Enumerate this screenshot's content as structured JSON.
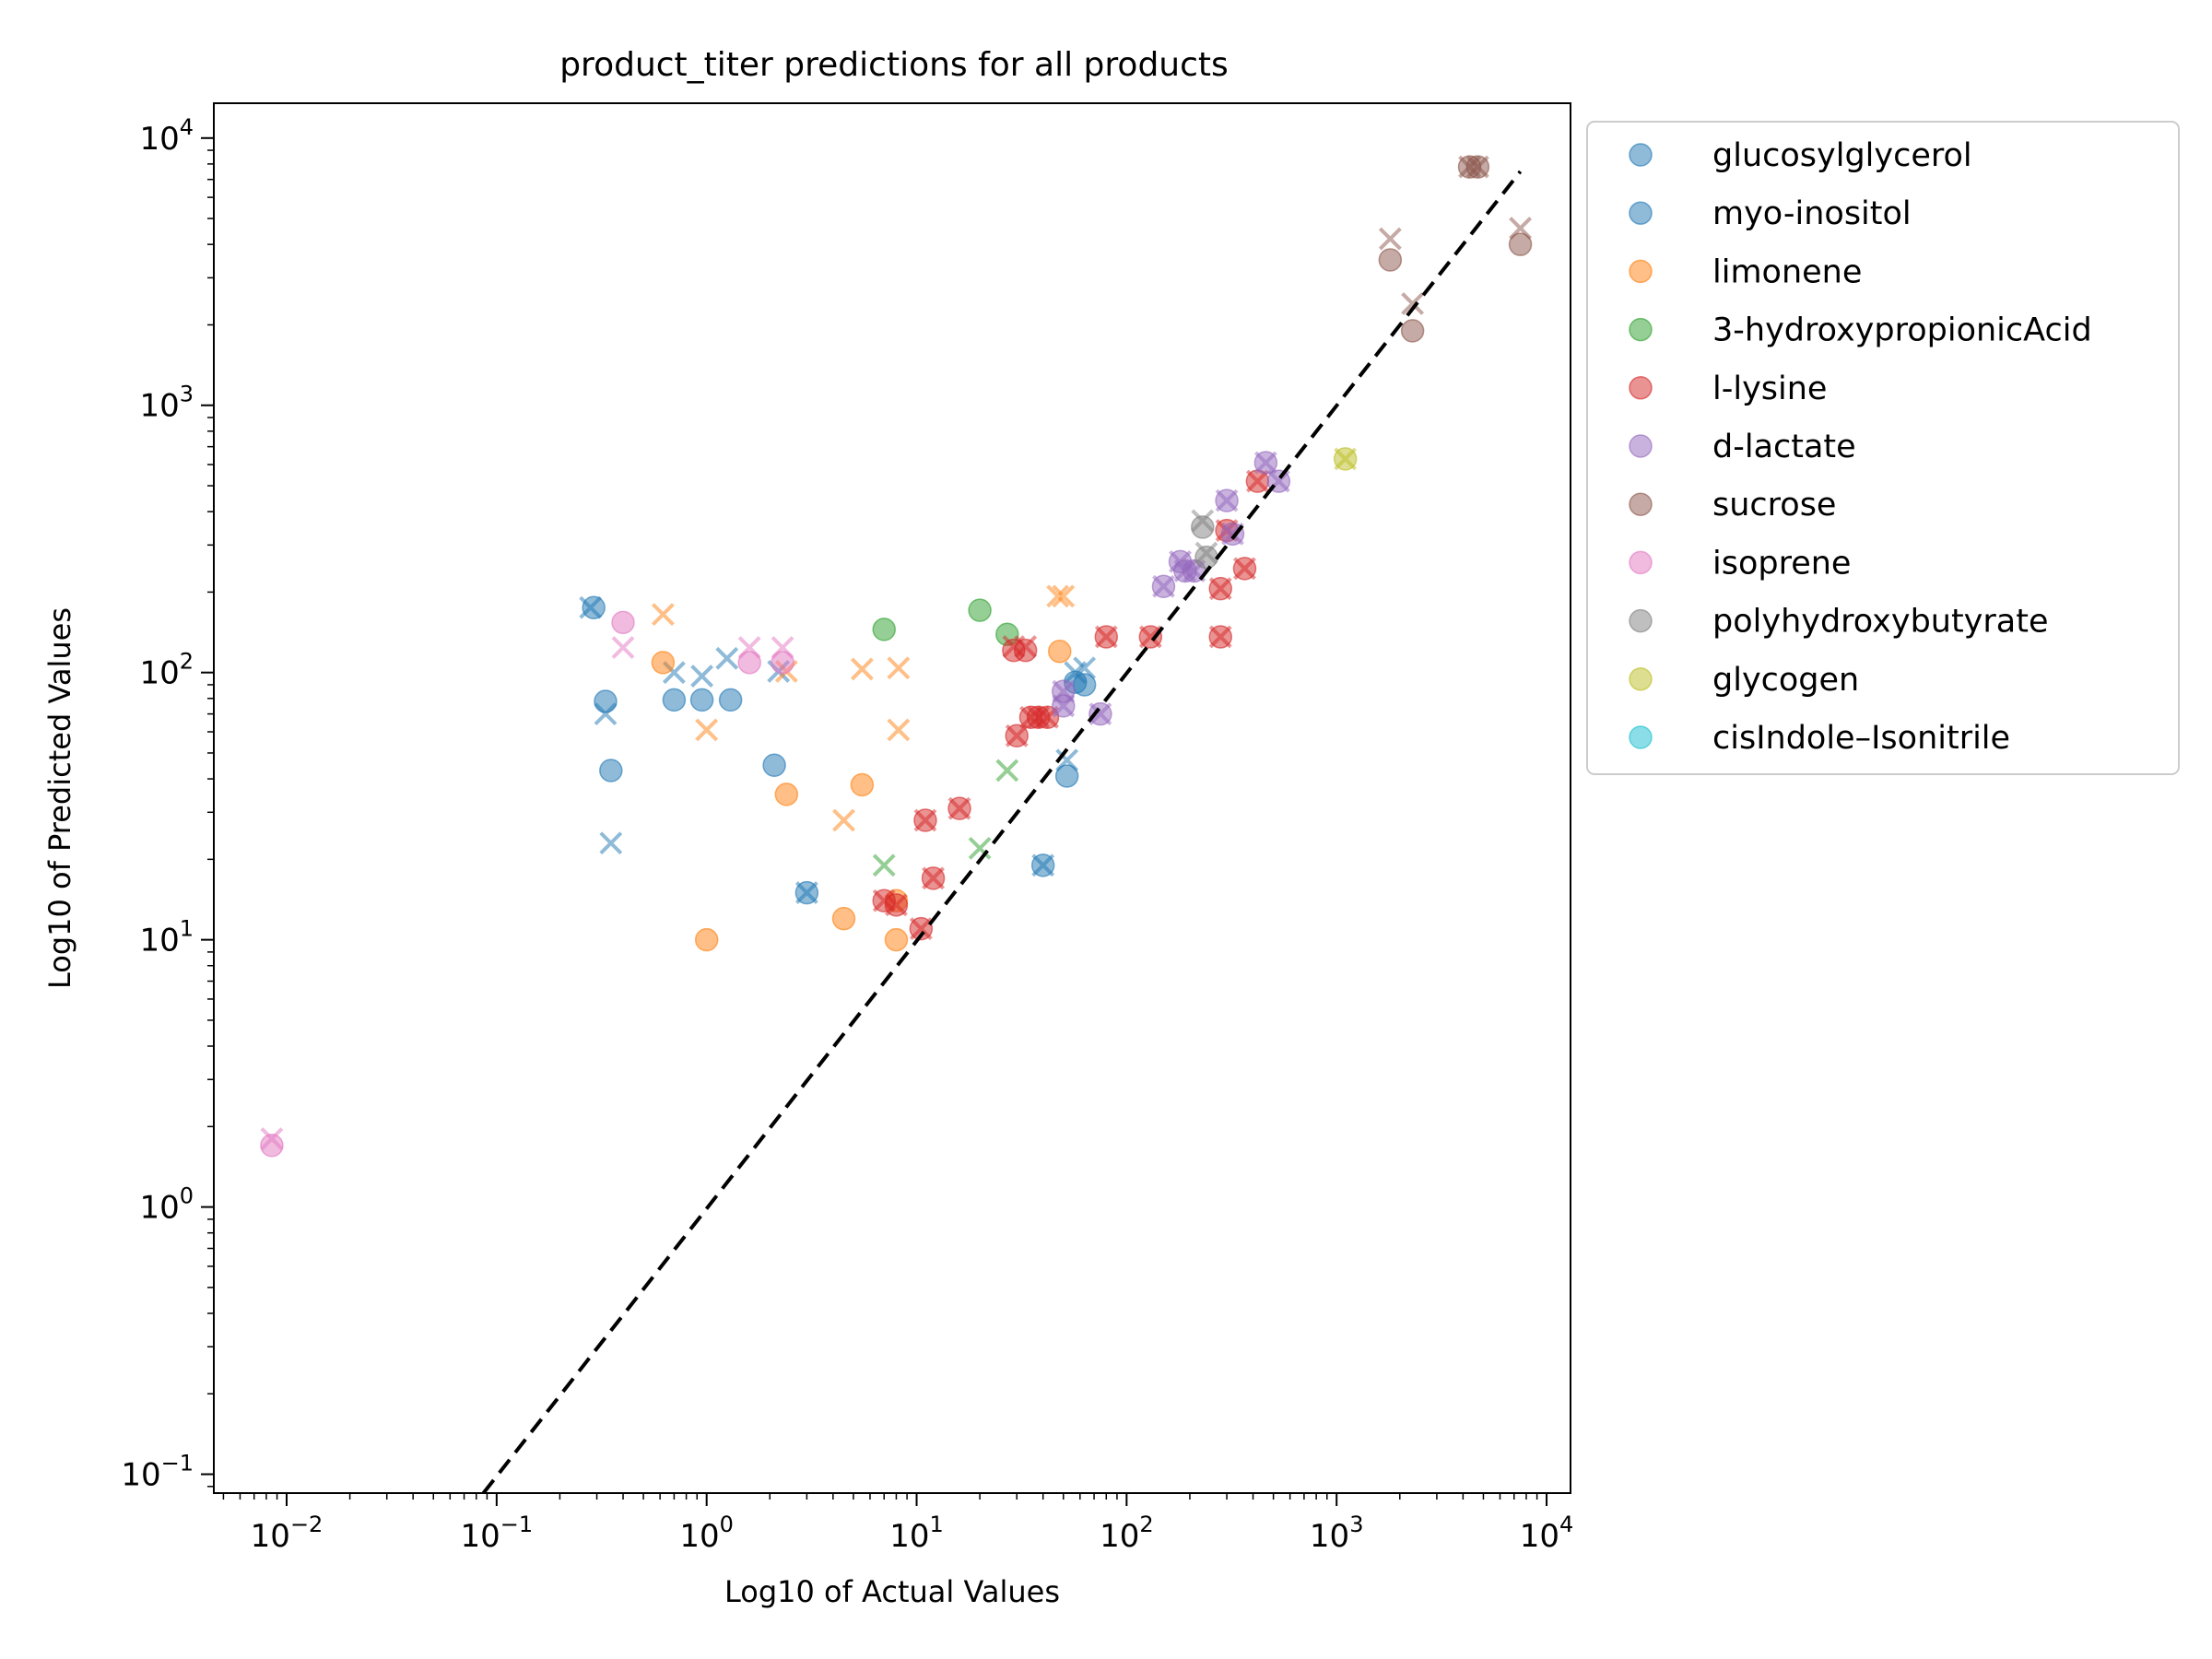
{
  "chart_data": {
    "type": "scatter",
    "title": "product_titer predictions for all products",
    "xlabel": "Log10 of Actual Values",
    "ylabel": "Log10 of Predicted Values",
    "xscale": "log",
    "yscale": "log",
    "xlim": [
      0.0045,
      13000
    ],
    "ylim": [
      0.085,
      13500
    ],
    "x_ticks": [
      {
        "value": 0.01,
        "base": "10",
        "exp": "−2"
      },
      {
        "value": 0.1,
        "base": "10",
        "exp": "−1"
      },
      {
        "value": 1,
        "base": "10",
        "exp": "0"
      },
      {
        "value": 10,
        "base": "10",
        "exp": "1"
      },
      {
        "value": 100,
        "base": "10",
        "exp": "2"
      },
      {
        "value": 1000,
        "base": "10",
        "exp": "3"
      },
      {
        "value": 10000,
        "base": "10",
        "exp": "4"
      }
    ],
    "y_ticks": [
      {
        "value": 0.1,
        "base": "10",
        "exp": "−1"
      },
      {
        "value": 1,
        "base": "10",
        "exp": "0"
      },
      {
        "value": 10,
        "base": "10",
        "exp": "1"
      },
      {
        "value": 100,
        "base": "10",
        "exp": "2"
      },
      {
        "value": 1000,
        "base": "10",
        "exp": "3"
      },
      {
        "value": 10000,
        "base": "10",
        "exp": "4"
      }
    ],
    "grid": false,
    "legend_position": "outside-right-top",
    "reference_line": {
      "style": "dashed",
      "color": "#000000",
      "points": [
        [
          0.0865,
          0.085
        ],
        [
          7500,
          7500
        ]
      ]
    },
    "series": [
      {
        "name": "glucosylglycerol",
        "color": "#1f77b4",
        "actual": [
          [
            0.29,
            175
          ],
          [
            0.33,
            78
          ],
          [
            0.35,
            43
          ],
          [
            2.1,
            45
          ],
          [
            3.0,
            15
          ],
          [
            0.7,
            79
          ],
          [
            0.95,
            79
          ],
          [
            1.3,
            79
          ],
          [
            40,
            19
          ],
          [
            52,
            41
          ],
          [
            57,
            92
          ],
          [
            63,
            90
          ]
        ],
        "predicted": [
          [
            0.28,
            175
          ],
          [
            0.33,
            70
          ],
          [
            0.35,
            23
          ],
          [
            2.2,
            101
          ],
          [
            3.0,
            15
          ],
          [
            0.7,
            100
          ],
          [
            0.95,
            97
          ],
          [
            1.25,
            113
          ],
          [
            40,
            19
          ],
          [
            52,
            47
          ],
          [
            57,
            100
          ],
          [
            63,
            104
          ]
        ]
      },
      {
        "name": "myo-inositol",
        "color": "#1f77b4",
        "actual": [],
        "predicted": []
      },
      {
        "name": "limonene",
        "color": "#ff7f0e",
        "actual": [
          [
            0.62,
            109
          ],
          [
            1.0,
            10
          ],
          [
            2.4,
            35
          ],
          [
            4.5,
            12
          ],
          [
            5.5,
            38
          ],
          [
            8.0,
            10
          ],
          [
            8.0,
            14
          ],
          [
            48,
            120
          ]
        ],
        "predicted": [
          [
            0.62,
            165
          ],
          [
            1.0,
            61
          ],
          [
            2.4,
            101
          ],
          [
            4.5,
            28
          ],
          [
            5.5,
            103
          ],
          [
            8.2,
            104
          ],
          [
            8.2,
            61
          ],
          [
            47,
            193
          ],
          [
            50,
            193
          ]
        ]
      },
      {
        "name": "3-hydroxypropionicAcid",
        "color": "#2ca02c",
        "actual": [
          [
            7.0,
            145
          ],
          [
            20,
            171
          ],
          [
            27,
            139
          ]
        ],
        "predicted": [
          [
            7.0,
            19
          ],
          [
            20,
            22
          ],
          [
            27,
            43
          ]
        ]
      },
      {
        "name": "l-lysine",
        "color": "#d62728",
        "actual": [
          [
            7,
            14
          ],
          [
            8,
            13.5
          ],
          [
            10.5,
            11
          ],
          [
            11,
            28
          ],
          [
            12,
            17
          ],
          [
            16,
            31
          ],
          [
            29,
            121
          ],
          [
            33,
            121
          ],
          [
            30,
            58
          ],
          [
            35,
            68
          ],
          [
            38,
            68
          ],
          [
            42,
            68
          ],
          [
            80,
            136
          ],
          [
            130,
            136
          ],
          [
            280,
            136
          ],
          [
            280,
            206
          ],
          [
            365,
            245
          ],
          [
            420,
            520
          ],
          [
            300,
            340
          ]
        ],
        "predicted": [
          [
            7,
            14
          ],
          [
            8,
            13.5
          ],
          [
            10.5,
            11
          ],
          [
            11,
            28
          ],
          [
            12,
            17
          ],
          [
            16,
            31
          ],
          [
            29,
            125
          ],
          [
            33,
            125
          ],
          [
            30,
            58
          ],
          [
            35,
            68
          ],
          [
            38,
            68
          ],
          [
            42,
            68
          ],
          [
            80,
            136
          ],
          [
            130,
            136
          ],
          [
            280,
            136
          ],
          [
            280,
            206
          ],
          [
            365,
            245
          ],
          [
            420,
            520
          ],
          [
            300,
            340
          ]
        ]
      },
      {
        "name": "d-lactate",
        "color": "#9467bd",
        "actual": [
          [
            150,
            210
          ],
          [
            180,
            260
          ],
          [
            190,
            240
          ],
          [
            210,
            240
          ],
          [
            300,
            440
          ],
          [
            320,
            330
          ],
          [
            460,
            610
          ],
          [
            530,
            520
          ],
          [
            50,
            85
          ],
          [
            50,
            75
          ],
          [
            75,
            70
          ]
        ],
        "predicted": [
          [
            150,
            210
          ],
          [
            180,
            260
          ],
          [
            190,
            240
          ],
          [
            210,
            240
          ],
          [
            300,
            440
          ],
          [
            320,
            330
          ],
          [
            460,
            610
          ],
          [
            530,
            520
          ],
          [
            50,
            85
          ],
          [
            50,
            75
          ],
          [
            75,
            70
          ]
        ]
      },
      {
        "name": "sucrose",
        "color": "#8c564b",
        "actual": [
          [
            1800,
            3500
          ],
          [
            2300,
            1900
          ],
          [
            4300,
            7800
          ],
          [
            4700,
            7800
          ],
          [
            7500,
            4000
          ]
        ],
        "predicted": [
          [
            1800,
            4200
          ],
          [
            2300,
            2400
          ],
          [
            4300,
            7800
          ],
          [
            4700,
            7800
          ],
          [
            7500,
            4600
          ]
        ]
      },
      {
        "name": "isoprene",
        "color": "#e377c2",
        "actual": [
          [
            0.0085,
            1.7
          ],
          [
            0.4,
            154
          ],
          [
            1.6,
            109
          ],
          [
            2.3,
            109
          ]
        ],
        "predicted": [
          [
            0.0085,
            1.8
          ],
          [
            0.4,
            124
          ],
          [
            1.6,
            124
          ],
          [
            2.3,
            124
          ]
        ]
      },
      {
        "name": "polyhydroxybutyrate",
        "color": "#7f7f7f",
        "actual": [
          [
            230,
            350
          ],
          [
            240,
            270
          ]
        ],
        "predicted": [
          [
            230,
            370
          ],
          [
            240,
            280
          ]
        ]
      },
      {
        "name": "glycogen",
        "color": "#bcbd22",
        "actual": [
          [
            1100,
            630
          ]
        ],
        "predicted": [
          [
            1100,
            630
          ]
        ]
      },
      {
        "name": "cisIndole–Isonitrile",
        "color": "#17becf",
        "actual": [],
        "predicted": []
      }
    ]
  }
}
